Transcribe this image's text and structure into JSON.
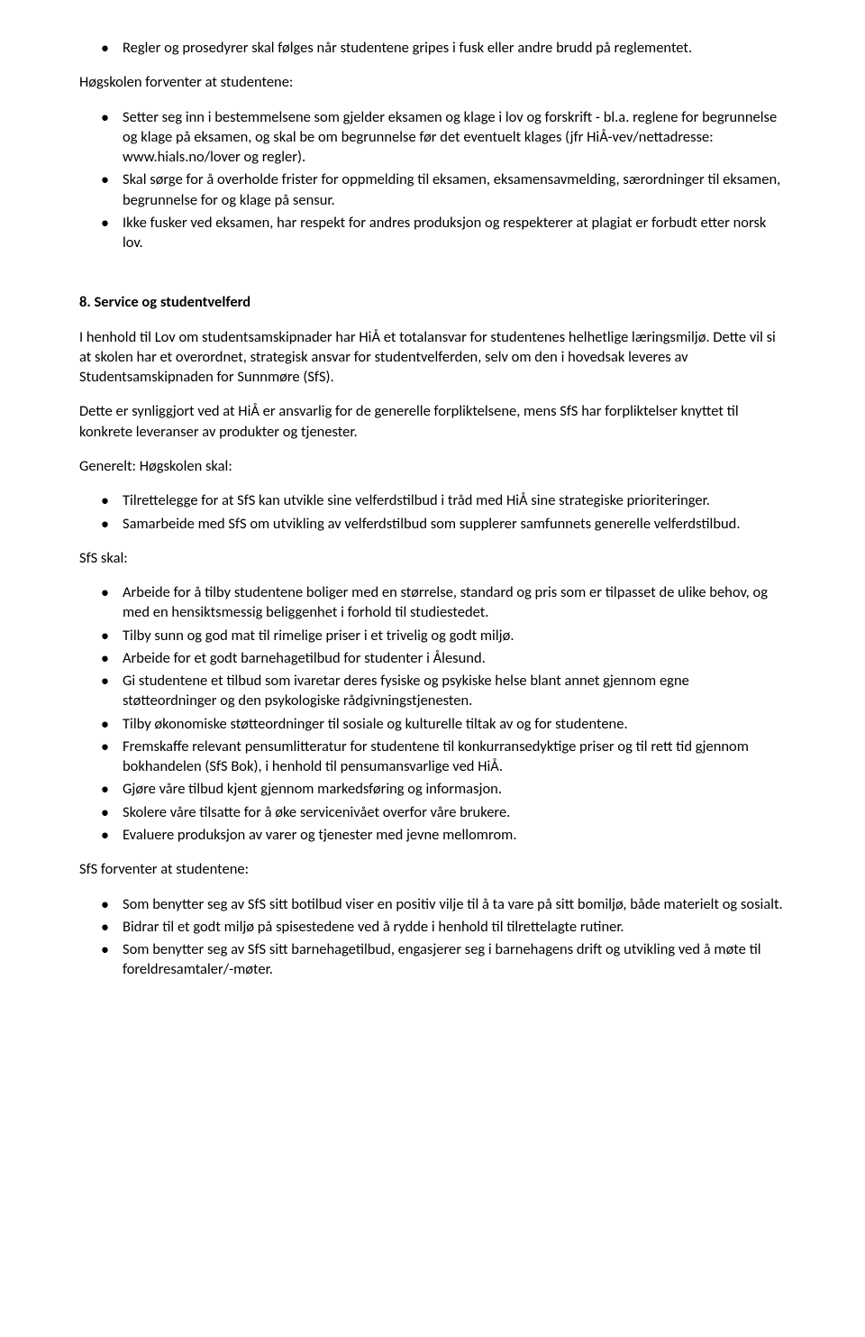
{
  "list1": {
    "items": [
      "Regler og prosedyrer skal følges når studentene gripes i fusk eller andre brudd på reglementet."
    ]
  },
  "para1": "Høgskolen forventer at studentene:",
  "list2": {
    "items": [
      "Setter seg inn i bestemmelsene som gjelder eksamen og klage i lov og forskrift - bl.a. reglene for begrunnelse og klage på eksamen, og skal be om begrunnelse før det eventuelt klages (jfr HiÅ-vev/nettadresse: www.hials.no/lover og regler).",
      "Skal sørge for å overholde frister for oppmelding til eksamen, eksamensavmelding, særordninger til eksamen, begrunnelse for og klage på sensur.",
      "Ikke fusker ved eksamen, har respekt for andres produksjon og respekterer at plagiat er forbudt etter norsk lov."
    ]
  },
  "heading8": "8. Service og studentvelferd",
  "para2": "I henhold til Lov om studentsamskipnader har HiÅ et totalansvar for studentenes helhetlige læringsmiljø. Dette vil si at skolen har et overordnet, strategisk ansvar for studentvelferden, selv om den i hovedsak leveres av Studentsamskipnaden for Sunnmøre (SfS).",
  "para3": "Dette er synliggjort ved at HiÅ er ansvarlig for de generelle forpliktelsene, mens SfS har forpliktelser knyttet til konkrete leveranser av produkter og tjenester.",
  "para4": "Generelt: Høgskolen skal:",
  "list3": {
    "items": [
      "Tilrettelegge for at SfS kan utvikle sine velferdstilbud i tråd med HiÅ sine strategiske prioriteringer.",
      "Samarbeide med SfS om utvikling av velferdstilbud som supplerer samfunnets generelle velferdstilbud."
    ]
  },
  "para5": "SfS skal:",
  "list4": {
    "items": [
      "Arbeide for å tilby studentene boliger med en størrelse, standard og pris som er tilpasset de ulike behov, og med en hensiktsmessig beliggenhet i forhold til studiestedet.",
      "Tilby sunn og god mat til rimelige priser i et trivelig og godt miljø.",
      "Arbeide for et godt barnehagetilbud for studenter i Ålesund.",
      "Gi studentene et tilbud som ivaretar deres fysiske og psykiske helse blant annet gjennom egne støtteordninger og den psykologiske rådgivningstjenesten.",
      "Tilby økonomiske støtteordninger til sosiale og kulturelle tiltak av og for studentene.",
      "Fremskaffe relevant pensumlitteratur for studentene til konkurransedyktige priser og til rett tid gjennom bokhandelen (SfS Bok), i henhold til pensumansvarlige ved HiÅ.",
      "Gjøre våre tilbud kjent gjennom markedsføring og informasjon.",
      "Skolere våre tilsatte for å øke servicenivået overfor våre brukere.",
      "Evaluere produksjon av varer og tjenester med jevne mellomrom."
    ]
  },
  "para6": "SfS forventer at studentene:",
  "list5": {
    "items": [
      "Som benytter seg av SfS sitt botilbud viser en positiv vilje til å ta vare på sitt bomiljø, både materielt og sosialt.",
      "Bidrar til et godt miljø på spisestedene ved å rydde i henhold til tilrettelagte rutiner.",
      "Som benytter seg av SfS sitt barnehagetilbud, engasjerer seg i barnehagens drift og utvikling ved å møte til foreldresamtaler/-møter."
    ]
  }
}
